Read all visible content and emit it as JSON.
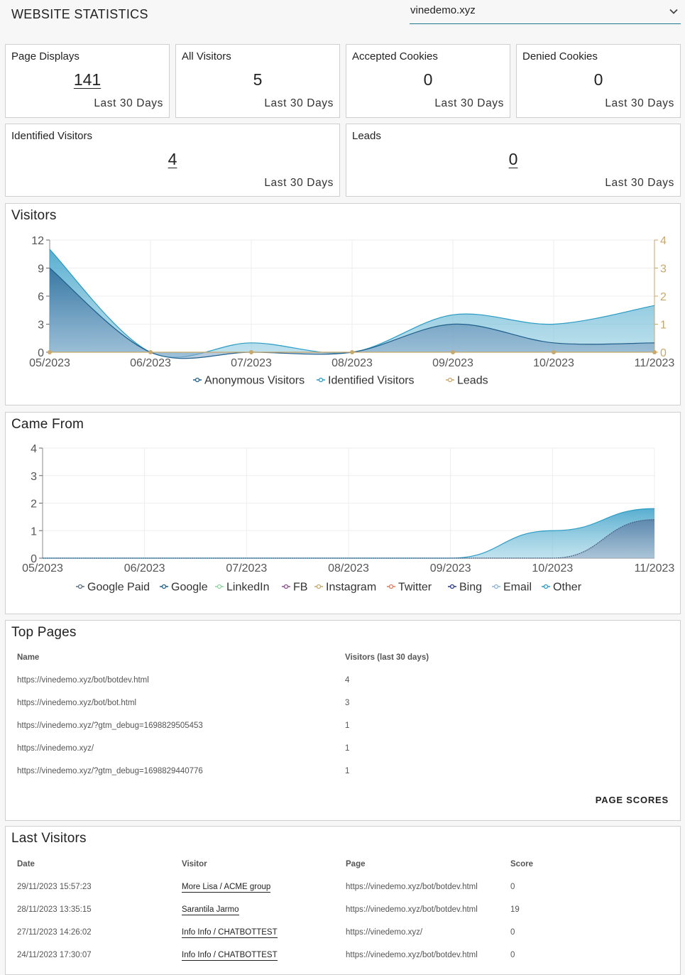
{
  "header": {
    "title": "WEBSITE STATISTICS",
    "site_select": {
      "value": "vinedemo.xyz",
      "icon": "chevron-down-icon"
    }
  },
  "stats": [
    {
      "label": "Page Displays",
      "value": "141",
      "sub": "Last 30 Days",
      "link": true
    },
    {
      "label": "All Visitors",
      "value": "5",
      "sub": "Last 30 Days",
      "link": false
    },
    {
      "label": "Accepted Cookies",
      "value": "0",
      "sub": "Last 30 Days",
      "link": false
    },
    {
      "label": "Denied Cookies",
      "value": "0",
      "sub": "Last 30 Days",
      "link": false
    },
    {
      "label": "Identified Visitors",
      "value": "4",
      "sub": "Last 30 Days",
      "link": true
    },
    {
      "label": "Leads",
      "value": "0",
      "sub": "Last 30 Days",
      "link": true
    }
  ],
  "visitors_chart": {
    "title": "Visitors",
    "x_ticks": [
      "05/2023",
      "06/2023",
      "07/2023",
      "08/2023",
      "09/2023",
      "10/2023",
      "11/2023"
    ],
    "y_left_ticks": [
      "0",
      "3",
      "6",
      "9",
      "12"
    ],
    "y_right_ticks": [
      "0",
      "1",
      "2",
      "3",
      "4"
    ],
    "legend": [
      "Anonymous Visitors",
      "Identified Visitors",
      "Leads"
    ]
  },
  "came_from_chart": {
    "title": "Came From",
    "x_ticks": [
      "05/2023",
      "06/2023",
      "07/2023",
      "08/2023",
      "09/2023",
      "10/2023",
      "11/2023"
    ],
    "y_ticks": [
      "0",
      "1",
      "2",
      "3",
      "4"
    ],
    "legend": [
      "Google Paid",
      "Google",
      "LinkedIn",
      "FB",
      "Instagram",
      "Twitter",
      "Bing",
      "Email",
      "Other"
    ]
  },
  "chart_data": [
    {
      "type": "area",
      "title": "Visitors",
      "categories": [
        "05/2023",
        "06/2023",
        "07/2023",
        "08/2023",
        "09/2023",
        "10/2023",
        "11/2023"
      ],
      "series": [
        {
          "name": "Anonymous Visitors",
          "axis": "left",
          "color": "#1f5f8b",
          "values": [
            9,
            0,
            0,
            0,
            3,
            1,
            1
          ]
        },
        {
          "name": "Identified Visitors",
          "axis": "left",
          "color": "#2a9bc4",
          "values": [
            11,
            0,
            1,
            0,
            4,
            3,
            5
          ]
        },
        {
          "name": "Leads",
          "axis": "right",
          "color": "#c8a86b",
          "values": [
            0,
            0,
            0,
            0,
            0,
            0,
            0
          ]
        }
      ],
      "ylim_left": [
        0,
        12
      ],
      "ylim_right": [
        0,
        4
      ],
      "grid": true,
      "legend_position": "bottom"
    },
    {
      "type": "area",
      "title": "Came From",
      "categories": [
        "05/2023",
        "06/2023",
        "07/2023",
        "08/2023",
        "09/2023",
        "10/2023",
        "11/2023"
      ],
      "series": [
        {
          "name": "Google Paid",
          "color": "#5a6f82",
          "values": [
            0,
            0,
            0,
            0,
            0,
            0,
            0
          ]
        },
        {
          "name": "Google",
          "color": "#1f5f8b",
          "values": [
            0,
            0,
            0,
            0,
            0,
            0,
            1.4
          ]
        },
        {
          "name": "LinkedIn",
          "color": "#8fd3a0",
          "values": [
            0,
            0,
            0,
            0,
            0,
            0,
            0
          ]
        },
        {
          "name": "FB",
          "color": "#8b4f8c",
          "values": [
            0,
            0,
            0,
            0,
            0,
            0,
            0
          ]
        },
        {
          "name": "Instagram",
          "color": "#c8a86b",
          "values": [
            0,
            0,
            0,
            0,
            0,
            0,
            0
          ]
        },
        {
          "name": "Twitter",
          "color": "#e07a5f",
          "values": [
            0,
            0,
            0,
            0,
            0,
            0,
            0
          ]
        },
        {
          "name": "Bing",
          "color": "#2b3a8c",
          "values": [
            0,
            0,
            0,
            0,
            0,
            0,
            0
          ]
        },
        {
          "name": "Email",
          "color": "#8ab4d8",
          "values": [
            0,
            0,
            0,
            0,
            0,
            0,
            0
          ]
        },
        {
          "name": "Other",
          "color": "#2a9bc4",
          "values": [
            0,
            0,
            0,
            0,
            0,
            1,
            1.8
          ]
        }
      ],
      "ylim": [
        0,
        4
      ],
      "grid": true,
      "legend_position": "bottom"
    }
  ],
  "top_pages": {
    "title": "Top Pages",
    "headers": [
      "Name",
      "Visitors (last 30 days)"
    ],
    "rows": [
      [
        "https://vinedemo.xyz/bot/botdev.html",
        "4"
      ],
      [
        "https://vinedemo.xyz/bot/bot.html",
        "3"
      ],
      [
        "https://vinedemo.xyz/?gtm_debug=1698829505453",
        "1"
      ],
      [
        "https://vinedemo.xyz/",
        "1"
      ],
      [
        "https://vinedemo.xyz/?gtm_debug=1698829440776",
        "1"
      ]
    ],
    "button": "PAGE SCORES"
  },
  "last_visitors": {
    "title": "Last Visitors",
    "headers": [
      "Date",
      "Visitor",
      "Page",
      "Score"
    ],
    "rows": [
      [
        "29/11/2023 15:57:23",
        "More Lisa / ACME group",
        "https://vinedemo.xyz/bot/botdev.html",
        "0"
      ],
      [
        "28/11/2023 13:35:15",
        "Sarantila Jarmo",
        "https://vinedemo.xyz/bot/botdev.html",
        "19"
      ],
      [
        "27/11/2023 14:26:02",
        "Info Info / CHATBOTTEST",
        "https://vinedemo.xyz/",
        "0"
      ],
      [
        "24/11/2023 17:30:07",
        "Info Info / CHATBOTTEST",
        "https://vinedemo.xyz/bot/botdev.html",
        "0"
      ]
    ]
  }
}
